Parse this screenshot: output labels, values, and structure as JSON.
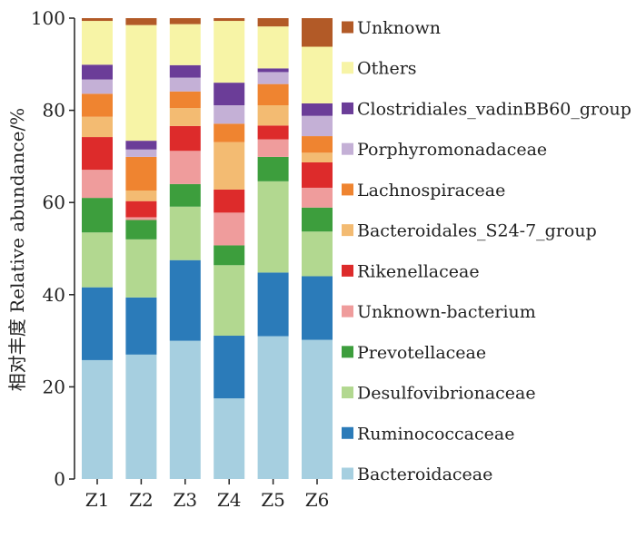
{
  "chart_data": {
    "type": "bar",
    "stacked": true,
    "ylabel": "相对丰度 Relative abundance/%",
    "ylim": [
      0,
      100
    ],
    "yticks": [
      0,
      20,
      40,
      60,
      80,
      100
    ],
    "grid": false,
    "legend_position": "right",
    "categories": [
      "Z1",
      "Z2",
      "Z3",
      "Z4",
      "Z5",
      "Z6"
    ],
    "series": [
      {
        "name": "Bacteroidaceae",
        "color": "#a6cfe0",
        "values": [
          25.8,
          27.0,
          30.0,
          17.5,
          31.0,
          30.2
        ]
      },
      {
        "name": "Ruminococcaceae",
        "color": "#2b7bb9",
        "values": [
          15.8,
          12.4,
          17.5,
          13.6,
          13.8,
          13.8
        ]
      },
      {
        "name": "Desulfovibrionaceae",
        "color": "#b2d890",
        "values": [
          11.9,
          12.6,
          11.6,
          15.3,
          19.8,
          9.7
        ]
      },
      {
        "name": "Prevotellaceae",
        "color": "#3d9e3d",
        "values": [
          7.5,
          4.2,
          4.9,
          4.3,
          5.3,
          5.2
        ]
      },
      {
        "name": "Unknown-bacterium",
        "color": "#ef9c9c",
        "values": [
          6.1,
          0.6,
          7.2,
          7.1,
          3.8,
          4.3
        ]
      },
      {
        "name": "Rikenellaceae",
        "color": "#dd2b2b",
        "values": [
          7.1,
          3.5,
          5.4,
          5.0,
          3.0,
          5.5
        ]
      },
      {
        "name": "Bacteroidales_S24-7_group",
        "color": "#f3bb72",
        "values": [
          4.4,
          2.3,
          3.9,
          10.3,
          4.4,
          2.1
        ]
      },
      {
        "name": "Lachnospiraceae",
        "color": "#ef8430",
        "values": [
          5.0,
          7.3,
          3.6,
          4.0,
          4.6,
          3.6
        ]
      },
      {
        "name": "Porphyromonadaceae",
        "color": "#c4b0d6",
        "values": [
          3.1,
          1.6,
          3.0,
          4.0,
          2.6,
          4.4
        ]
      },
      {
        "name": "Clostridiales_vadinBB60_group",
        "color": "#6b3d98",
        "values": [
          3.2,
          1.9,
          2.7,
          4.9,
          0.8,
          2.7
        ]
      },
      {
        "name": "Others",
        "color": "#f7f4a6",
        "values": [
          9.5,
          25.1,
          8.9,
          13.4,
          9.1,
          12.3
        ]
      },
      {
        "name": "Unknown",
        "color": "#b25a27",
        "values": [
          0.6,
          1.5,
          1.3,
          0.6,
          1.8,
          6.2
        ]
      }
    ]
  }
}
